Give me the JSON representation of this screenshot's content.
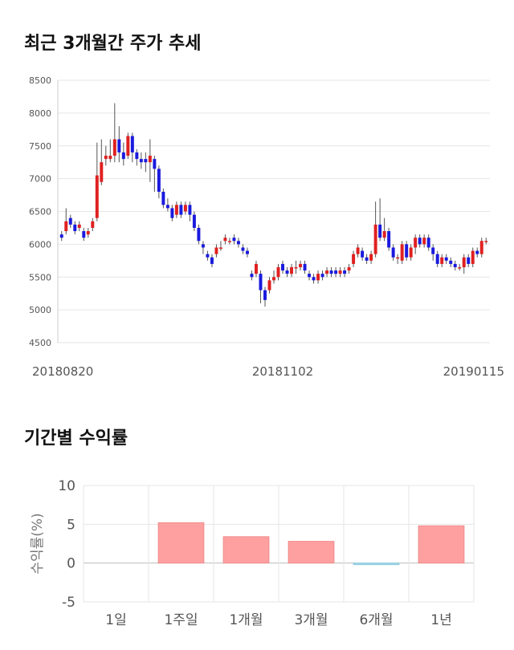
{
  "section1_title": "최근 3개월간 주가 추세",
  "section2_title": "기간별 수익률",
  "chart_data": [
    {
      "type": "candlestick",
      "title": "최근 3개월간 주가 추세",
      "ylim": [
        4500,
        8500
      ],
      "yticks": [
        4500,
        5000,
        5500,
        6000,
        6500,
        7000,
        7500,
        8000,
        8500
      ],
      "x_labels": [
        {
          "label": "20180820",
          "index": 0
        },
        {
          "label": "20181102",
          "index": 50
        },
        {
          "label": "20190115",
          "index": 100
        }
      ],
      "colors": {
        "up": "#e02020",
        "down": "#1a1adf",
        "wick": "#555555"
      },
      "grid": true,
      "candles": [
        [
          6150,
          6100,
          6200,
          6050
        ],
        [
          6200,
          6350,
          6550,
          6150
        ],
        [
          6400,
          6300,
          6450,
          6250
        ],
        [
          6300,
          6200,
          6350,
          6150
        ],
        [
          6250,
          6300,
          6350,
          6200
        ],
        [
          6200,
          6100,
          6250,
          6050
        ],
        [
          6150,
          6200,
          6250,
          6100
        ],
        [
          6250,
          6350,
          6400,
          6200
        ],
        [
          6400,
          7050,
          7550,
          6350
        ],
        [
          6950,
          7250,
          7600,
          6900
        ],
        [
          7300,
          7350,
          7500,
          7200
        ],
        [
          7300,
          7350,
          7600,
          7250
        ],
        [
          7350,
          7600,
          8150,
          7250
        ],
        [
          7600,
          7400,
          7800,
          7250
        ],
        [
          7400,
          7300,
          7550,
          7200
        ],
        [
          7350,
          7650,
          7700,
          7300
        ],
        [
          7650,
          7400,
          7700,
          7250
        ],
        [
          7400,
          7300,
          7450,
          7200
        ],
        [
          7300,
          7250,
          7400,
          7150
        ],
        [
          7300,
          7250,
          7400,
          7100
        ],
        [
          7250,
          7350,
          7600,
          6950
        ],
        [
          7300,
          7150,
          7350,
          6800
        ],
        [
          7150,
          6800,
          7200,
          6700
        ],
        [
          6800,
          6600,
          6850,
          6550
        ],
        [
          6600,
          6550,
          6700,
          6500
        ],
        [
          6550,
          6400,
          6600,
          6350
        ],
        [
          6450,
          6600,
          6650,
          6400
        ],
        [
          6600,
          6450,
          6650,
          6400
        ],
        [
          6500,
          6600,
          6650,
          6450
        ],
        [
          6600,
          6450,
          6650,
          6350
        ],
        [
          6450,
          6250,
          6500,
          6200
        ],
        [
          6250,
          6050,
          6300,
          6000
        ],
        [
          6000,
          5950,
          6050,
          5850
        ],
        [
          5850,
          5800,
          5900,
          5750
        ],
        [
          5800,
          5700,
          5850,
          5650
        ],
        [
          5850,
          5950,
          6000,
          5800
        ],
        [
          5950,
          5950,
          6050,
          5900
        ],
        [
          6050,
          6100,
          6150,
          6000
        ],
        [
          6050,
          6050,
          6100,
          6000
        ],
        [
          6100,
          6050,
          6150,
          6000
        ],
        [
          6050,
          6000,
          6100,
          5950
        ],
        [
          5950,
          5900,
          6000,
          5850
        ],
        [
          5900,
          5850,
          5950,
          5800
        ],
        [
          5550,
          5500,
          5600,
          5450
        ],
        [
          5550,
          5700,
          5750,
          5500
        ],
        [
          5550,
          5300,
          5600,
          5100
        ],
        [
          5300,
          5150,
          5350,
          5050
        ],
        [
          5300,
          5450,
          5500,
          5250
        ],
        [
          5450,
          5500,
          5600,
          5400
        ],
        [
          5500,
          5650,
          5700,
          5450
        ],
        [
          5700,
          5600,
          5750,
          5550
        ],
        [
          5600,
          5550,
          5650,
          5500
        ],
        [
          5550,
          5650,
          5700,
          5500
        ],
        [
          5650,
          5650,
          5750,
          5550
        ],
        [
          5650,
          5700,
          5750,
          5600
        ],
        [
          5700,
          5600,
          5750,
          5550
        ],
        [
          5550,
          5500,
          5600,
          5450
        ],
        [
          5500,
          5450,
          5550,
          5400
        ],
        [
          5450,
          5550,
          5600,
          5400
        ],
        [
          5550,
          5500,
          5600,
          5450
        ],
        [
          5550,
          5600,
          5650,
          5500
        ],
        [
          5600,
          5550,
          5650,
          5500
        ],
        [
          5600,
          5550,
          5650,
          5500
        ],
        [
          5550,
          5600,
          5650,
          5500
        ],
        [
          5600,
          5550,
          5650,
          5500
        ],
        [
          5600,
          5650,
          5700,
          5550
        ],
        [
          5700,
          5850,
          5900,
          5650
        ],
        [
          5850,
          5950,
          6000,
          5800
        ],
        [
          5900,
          5800,
          5950,
          5750
        ],
        [
          5800,
          5750,
          5850,
          5700
        ],
        [
          5750,
          5850,
          5900,
          5700
        ],
        [
          5850,
          6300,
          6650,
          5800
        ],
        [
          6300,
          6100,
          6700,
          6050
        ],
        [
          6100,
          6200,
          6400,
          6050
        ],
        [
          6200,
          5950,
          6250,
          5900
        ],
        [
          5950,
          5800,
          6000,
          5750
        ],
        [
          5800,
          5800,
          5850,
          5700
        ],
        [
          5750,
          6000,
          6050,
          5700
        ],
        [
          6000,
          5800,
          6050,
          5750
        ],
        [
          5800,
          5950,
          6000,
          5750
        ],
        [
          5950,
          6100,
          6150,
          5850
        ],
        [
          6100,
          6000,
          6150,
          5950
        ],
        [
          6000,
          6100,
          6150,
          5950
        ],
        [
          6100,
          5950,
          6150,
          5900
        ],
        [
          5950,
          5850,
          6000,
          5750
        ],
        [
          5850,
          5700,
          5900,
          5650
        ],
        [
          5700,
          5800,
          5850,
          5650
        ],
        [
          5800,
          5750,
          5850,
          5700
        ],
        [
          5750,
          5700,
          5800,
          5650
        ],
        [
          5700,
          5650,
          5750,
          5600
        ],
        [
          5650,
          5650,
          5700,
          5600
        ],
        [
          5650,
          5800,
          5850,
          5550
        ],
        [
          5800,
          5700,
          5850,
          5650
        ],
        [
          5700,
          5900,
          5950,
          5650
        ],
        [
          5900,
          5850,
          5950,
          5800
        ],
        [
          5850,
          6050,
          6100,
          5800
        ],
        [
          6050,
          6050,
          6100,
          6000
        ]
      ]
    },
    {
      "type": "bar",
      "title": "기간별 수익률",
      "categories": [
        "1일",
        "1주일",
        "1개월",
        "3개월",
        "6개월",
        "1년"
      ],
      "values": [
        0,
        5.2,
        3.4,
        2.8,
        -0.2,
        4.8
      ],
      "ylabel": "수익률(%)",
      "ylim": [
        -5,
        10
      ],
      "yticks": [
        -5,
        0,
        5,
        10
      ],
      "colors": {
        "positive": "#ffa0a0",
        "negative": "#a8dcec"
      },
      "grid": true
    }
  ]
}
